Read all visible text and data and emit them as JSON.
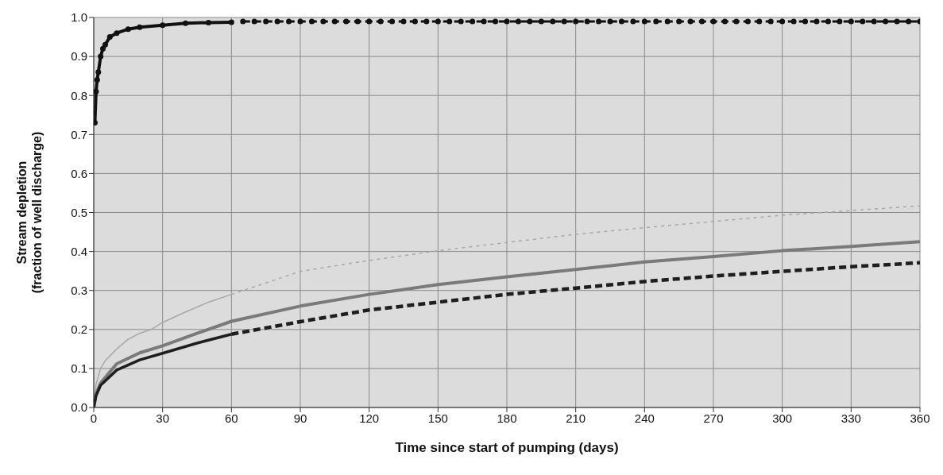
{
  "chart_data": {
    "type": "line",
    "xlabel": "Time since start of pumping (days)",
    "ylabel": "Stream depletion\n(fraction of well discharge)",
    "xlim": [
      0,
      360
    ],
    "xticks": [
      0,
      30,
      60,
      90,
      120,
      150,
      180,
      210,
      240,
      270,
      300,
      330,
      360
    ],
    "ylim": [
      0,
      1
    ],
    "yticks": [
      {
        "value": 0,
        "label": "0.0"
      },
      0.1,
      0.2,
      0.3,
      0.4,
      0.5,
      0.6,
      0.7,
      0.8,
      0.9,
      {
        "value": 1,
        "label": "1.0"
      }
    ],
    "grid": true,
    "series": [
      {
        "color": "#a8a8a8",
        "line_style": "solid",
        "marker": "none",
        "x": [
          0,
          1,
          3,
          5,
          10,
          15,
          20,
          25,
          30,
          40,
          50,
          60
        ],
        "values": [
          0,
          0.06,
          0.1,
          0.12,
          0.15,
          0.175,
          0.19,
          0.2,
          0.218,
          0.245,
          0.27,
          0.29
        ]
      },
      {
        "color": "#a8a8a8",
        "line_style": "dotted",
        "marker": "none",
        "x": [
          60,
          90,
          120,
          150,
          180,
          210,
          240,
          270,
          300,
          330,
          360
        ],
        "values": [
          0.29,
          0.349,
          0.377,
          0.402,
          0.423,
          0.444,
          0.461,
          0.477,
          0.493,
          0.505,
          0.517
        ]
      },
      {
        "color": "#7a7a7a",
        "line_style": "solid",
        "marker": "none",
        "x": [
          0,
          1,
          3,
          10,
          20,
          30,
          45,
          60,
          90,
          120,
          150,
          180,
          210,
          240,
          270,
          300,
          330,
          360
        ],
        "values": [
          0,
          0.035,
          0.063,
          0.112,
          0.14,
          0.158,
          0.19,
          0.221,
          0.26,
          0.29,
          0.315,
          0.335,
          0.354,
          0.373,
          0.387,
          0.402,
          0.413,
          0.425
        ]
      },
      {
        "color": "#1e1e1e",
        "line_style": "solid",
        "marker": "none",
        "x": [
          0,
          1,
          3,
          10,
          20,
          30,
          45,
          60
        ],
        "values": [
          0,
          0.03,
          0.057,
          0.096,
          0.122,
          0.139,
          0.165,
          0.188
        ]
      },
      {
        "color": "#1e1e1e",
        "line_style": "dashed",
        "marker": "none",
        "x": [
          60,
          90,
          120,
          150,
          180,
          210,
          240,
          270,
          300,
          330,
          360
        ],
        "values": [
          0.188,
          0.22,
          0.25,
          0.27,
          0.29,
          0.306,
          0.323,
          0.337,
          0.349,
          0.361,
          0.371
        ]
      },
      {
        "color": "#111111",
        "line_style": "solid",
        "marker": "circle",
        "x": [
          0.5,
          1,
          1.5,
          2,
          3,
          4,
          5,
          7,
          10,
          15,
          20,
          30,
          40,
          50,
          60
        ],
        "values": [
          0.73,
          0.81,
          0.84,
          0.86,
          0.9,
          0.92,
          0.93,
          0.95,
          0.96,
          0.97,
          0.975,
          0.98,
          0.985,
          0.987,
          0.988
        ]
      },
      {
        "color": "#111111",
        "line_style": "dashed",
        "marker": "circle",
        "x": [
          65,
          70,
          75,
          80,
          85,
          90,
          95,
          100,
          105,
          110,
          115,
          120,
          125,
          130,
          135,
          140,
          145,
          150,
          155,
          160,
          165,
          170,
          175,
          180,
          185,
          190,
          195,
          200,
          205,
          210,
          215,
          220,
          225,
          230,
          235,
          240,
          245,
          250,
          255,
          260,
          265,
          270,
          275,
          280,
          285,
          290,
          295,
          300,
          305,
          310,
          315,
          320,
          325,
          330,
          335,
          340,
          345,
          350,
          355,
          360
        ],
        "values": [
          0.99,
          0.99,
          0.99,
          0.99,
          0.99,
          0.99,
          0.99,
          0.99,
          0.99,
          0.99,
          0.99,
          0.99,
          0.99,
          0.99,
          0.99,
          0.99,
          0.99,
          0.99,
          0.99,
          0.99,
          0.99,
          0.99,
          0.99,
          0.99,
          0.99,
          0.99,
          0.99,
          0.99,
          0.99,
          0.99,
          0.99,
          0.99,
          0.99,
          0.99,
          0.99,
          0.99,
          0.99,
          0.99,
          0.99,
          0.99,
          0.99,
          0.99,
          0.99,
          0.99,
          0.99,
          0.99,
          0.99,
          0.99,
          0.99,
          0.99,
          0.99,
          0.99,
          0.99,
          0.99,
          0.99,
          0.99,
          0.99,
          0.99,
          0.99,
          0.99
        ]
      }
    ]
  }
}
